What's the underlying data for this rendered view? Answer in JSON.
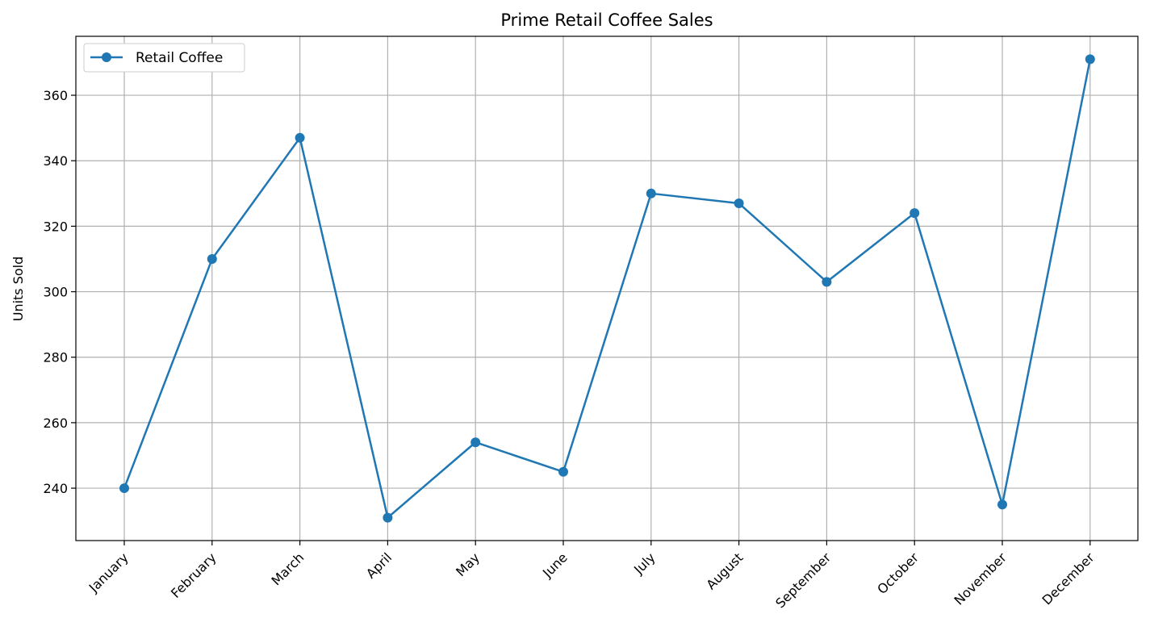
{
  "chart_data": {
    "type": "line",
    "title": "Prime Retail Coffee Sales",
    "xlabel": "",
    "ylabel": "Units Sold",
    "categories": [
      "January",
      "February",
      "March",
      "April",
      "May",
      "June",
      "July",
      "August",
      "September",
      "October",
      "November",
      "December"
    ],
    "series": [
      {
        "name": "Retail Coffee",
        "values": [
          240,
          310,
          347,
          231,
          254,
          245,
          330,
          327,
          303,
          324,
          235,
          371
        ],
        "color": "#1f77b4",
        "marker": "circle"
      }
    ],
    "ylim": [
      224,
      378
    ],
    "yticks": [
      240,
      260,
      280,
      300,
      320,
      340,
      360
    ],
    "grid": true,
    "legend": "top-left",
    "x_tick_rotation": -45
  }
}
